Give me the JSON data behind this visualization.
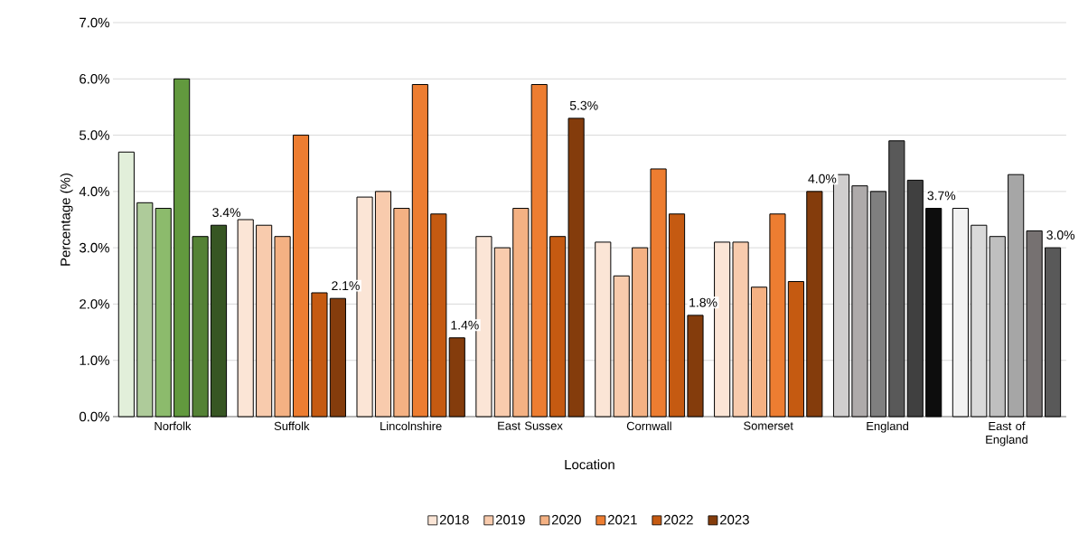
{
  "chart_data": {
    "type": "bar",
    "xlabel": "Location",
    "ylabel": "Percentage (%)",
    "categories": [
      "Norfolk",
      "Suffolk",
      "Lincolnshire",
      "East Sussex",
      "Cornwall",
      "Somerset",
      "England",
      "East of England"
    ],
    "ylim": [
      0,
      7
    ],
    "yticks": [
      {
        "value": 0,
        "label": "0.0%"
      },
      {
        "value": 1,
        "label": "1.0%"
      },
      {
        "value": 2,
        "label": "2.0%"
      },
      {
        "value": 3,
        "label": "3.0%"
      },
      {
        "value": 4,
        "label": "4.0%"
      },
      {
        "value": 5,
        "label": "5.0%"
      },
      {
        "value": 6,
        "label": "6.0%"
      },
      {
        "value": 7,
        "label": "7.0%"
      }
    ],
    "grid": "y",
    "legend": "bottom",
    "series": [
      {
        "name": "2018",
        "color": "#fbe5d6",
        "colors": [
          "#e2efda",
          "#fbe5d6",
          "#fbe5d6",
          "#fbe5d6",
          "#fbe5d6",
          "#fbe5d6",
          "#d0cece",
          "#f2f2f2"
        ],
        "values": [
          4.7,
          3.5,
          3.9,
          3.2,
          3.1,
          3.1,
          4.3,
          3.7
        ]
      },
      {
        "name": "2019",
        "color": "#f8cbad",
        "colors": [
          "#aecb9a",
          "#f8cbad",
          "#f8cbad",
          "#f8cbad",
          "#f8cbad",
          "#f8cbad",
          "#aeaaaa",
          "#d9d9d9"
        ],
        "values": [
          3.8,
          3.4,
          4.0,
          3.0,
          2.5,
          3.1,
          4.1,
          3.4
        ]
      },
      {
        "name": "2020",
        "color": "#f4b183",
        "colors": [
          "#8cbb6c",
          "#f4b183",
          "#f4b183",
          "#f4b183",
          "#f4b183",
          "#f4b183",
          "#7f7f7f",
          "#bfbfbf"
        ],
        "values": [
          3.7,
          3.2,
          3.7,
          3.7,
          3.0,
          2.3,
          4.0,
          3.2
        ]
      },
      {
        "name": "2021",
        "color": "#ed7d31",
        "colors": [
          "#62993e",
          "#ed7d31",
          "#ed7d31",
          "#ed7d31",
          "#ed7d31",
          "#ed7d31",
          "#595959",
          "#a6a6a6"
        ],
        "values": [
          6.0,
          5.0,
          5.9,
          5.9,
          4.4,
          3.6,
          4.9,
          4.3
        ]
      },
      {
        "name": "2022",
        "color": "#c55a11",
        "colors": [
          "#548235",
          "#c55a11",
          "#c55a11",
          "#c55a11",
          "#c55a11",
          "#c55a11",
          "#404040",
          "#767171"
        ],
        "values": [
          3.2,
          2.2,
          3.6,
          3.2,
          3.6,
          2.4,
          4.2,
          3.3
        ]
      },
      {
        "name": "2023",
        "color": "#843c0c",
        "colors": [
          "#375623",
          "#843c0c",
          "#843c0c",
          "#843c0c",
          "#843c0c",
          "#843c0c",
          "#0d0d0d",
          "#595959"
        ],
        "values": [
          3.4,
          2.1,
          1.4,
          5.3,
          1.8,
          4.0,
          3.7,
          3.0
        ],
        "value_labels": [
          "3.4%",
          "2.1%",
          "1.4%",
          "5.3%",
          "1.8%",
          "4.0%",
          "3.7%",
          "3.0%"
        ]
      }
    ]
  }
}
